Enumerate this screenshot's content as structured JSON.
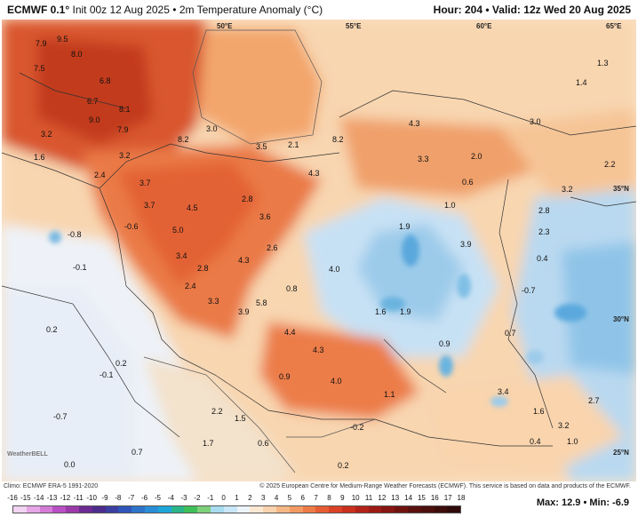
{
  "header": {
    "model": "ECMWF 0.1°",
    "init": "Init 00z 12 Aug 2025",
    "sep": "•",
    "variable": "2m Temperature Anomaly (°C)",
    "hour": "Hour: 204",
    "valid": "Valid: 12z Wed 20 Aug 2025"
  },
  "coord_labels": [
    "50°E",
    "55°E",
    "60°E",
    "65°E",
    "35°N",
    "30°N",
    "25°N"
  ],
  "map_values": [
    "7.9",
    "9.5",
    "8.0",
    "7.5",
    "6.8",
    "6.7",
    "8.1",
    "9.0",
    "7.9",
    "8.2",
    "3.2",
    "1.6",
    "3.0",
    "3.5",
    "2.1",
    "8.2",
    "4.3",
    "3.3",
    "2.0",
    "3.2",
    "2.4",
    "3.7",
    "4.3",
    "2.8",
    "0.6",
    "4.5",
    "3.6",
    "3.7",
    "1.0",
    "5.0",
    "2.6",
    "1.9",
    "3.9",
    "3.4",
    "2.8",
    "4.3",
    "4.0",
    "2.4",
    "0.8",
    "3.3",
    "3.9",
    "5.8",
    "1.6",
    "1.9",
    "4.4",
    "0.9",
    "4.3",
    "4.0",
    "0.9",
    "1.1",
    "3.4",
    "2.2",
    "1.5",
    "1.7",
    "0.6",
    "0.0",
    "0.7",
    "0.2",
    "0.2",
    "-0.1",
    "-0.7",
    "-0.8",
    "-0.1",
    "-0.6",
    "-0.7",
    "-0.2",
    "0.2",
    "3.0",
    "1.3",
    "1.4",
    "2.2",
    "3.2",
    "2.8",
    "2.3",
    "0.4",
    "0.7",
    "1.6",
    "3.2",
    "1.0",
    "0.4",
    "2.7"
  ],
  "credits": {
    "climo": "Climo: ECMWF ERA-5 1991-2020",
    "copyright": "© 2025 European Centre for Medium-Range Weather Forecasts (ECMWF). This service is based on data and products of the ECMWF."
  },
  "legend": {
    "ticks": [
      "-16",
      "-15",
      "-14",
      "-13",
      "-12",
      "-11",
      "-10",
      "-9",
      "-8",
      "-7",
      "-6",
      "-5",
      "-4",
      "-3",
      "-2",
      "-1",
      "0",
      "1",
      "2",
      "3",
      "4",
      "5",
      "6",
      "7",
      "8",
      "9",
      "10",
      "11",
      "12",
      "13",
      "14",
      "15",
      "16",
      "17",
      "18"
    ],
    "colors": [
      "#f2d4f2",
      "#e6a6e6",
      "#d47bd6",
      "#b94fc4",
      "#9a3aa8",
      "#6c2a92",
      "#4d2c8c",
      "#3a3fa0",
      "#2f55b8",
      "#2e74c8",
      "#2a8ed6",
      "#1ea6d8",
      "#2bb48a",
      "#3fbf5a",
      "#7fd07a",
      "#a8dcf0",
      "#c9e7f7",
      "#eef4fb",
      "#fbe8d2",
      "#f8d3ad",
      "#f5b885",
      "#f29a62",
      "#ee7b47",
      "#e65c33",
      "#d94226",
      "#c9301e",
      "#b32318",
      "#9c1b14",
      "#861611",
      "#70130f",
      "#5a110e",
      "#4b0f0d",
      "#3d0d0c",
      "#2f0a0a"
    ],
    "max": "Max: 12.9",
    "min": "Min: -6.9",
    "sep": "•"
  },
  "watermark": "WeatherBELL"
}
